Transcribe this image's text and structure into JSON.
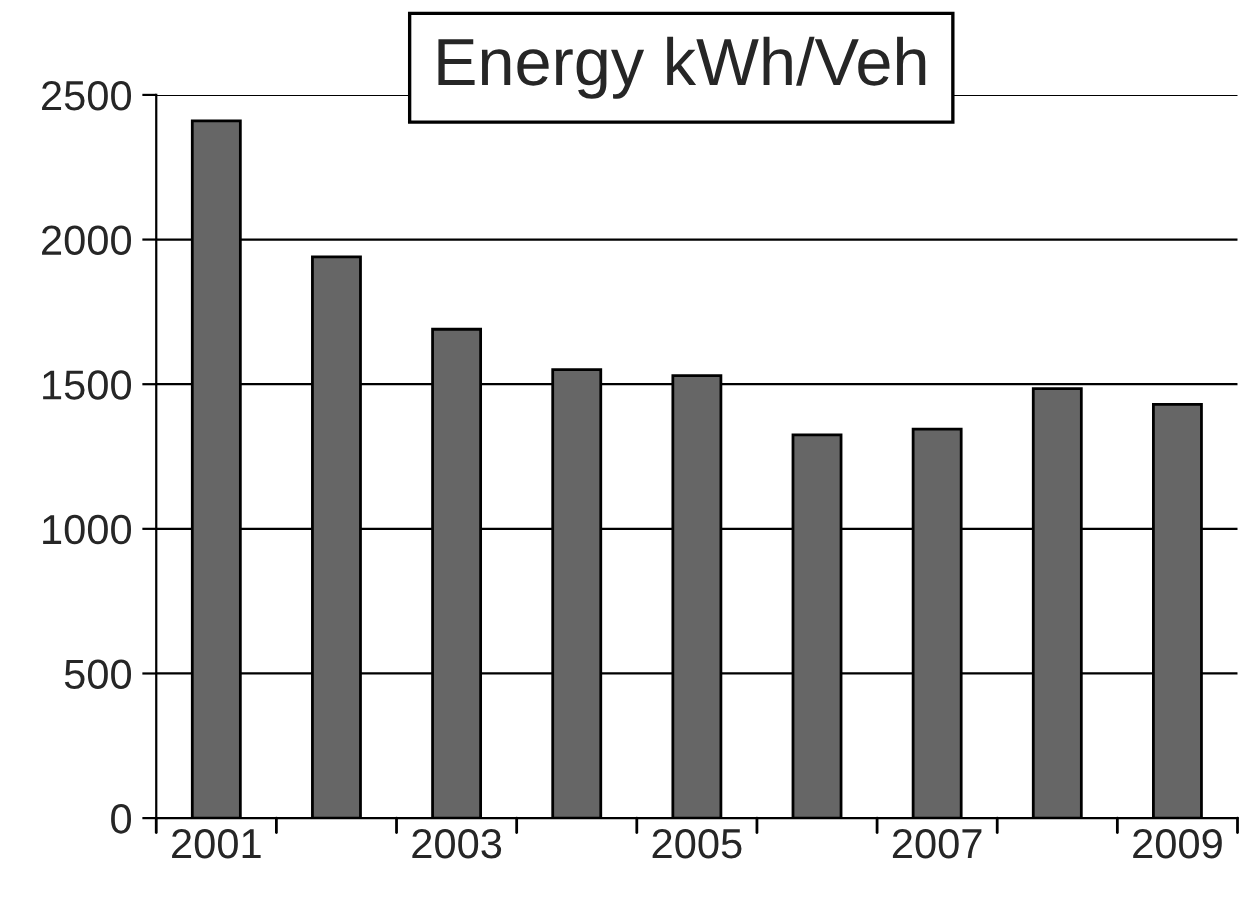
{
  "chart_data": {
    "type": "bar",
    "title": "Energy kWh/Veh",
    "categories": [
      "2001",
      null,
      "2003",
      null,
      "2005",
      null,
      "2007",
      null,
      "2009"
    ],
    "values": [
      2410,
      1940,
      1690,
      1550,
      1530,
      1325,
      1345,
      1485,
      1430
    ],
    "color": "#666666",
    "ylim": [
      0,
      2500
    ],
    "yticks": [
      0,
      500,
      1000,
      1500,
      2000,
      2500
    ],
    "grid": "y",
    "legend": false
  }
}
